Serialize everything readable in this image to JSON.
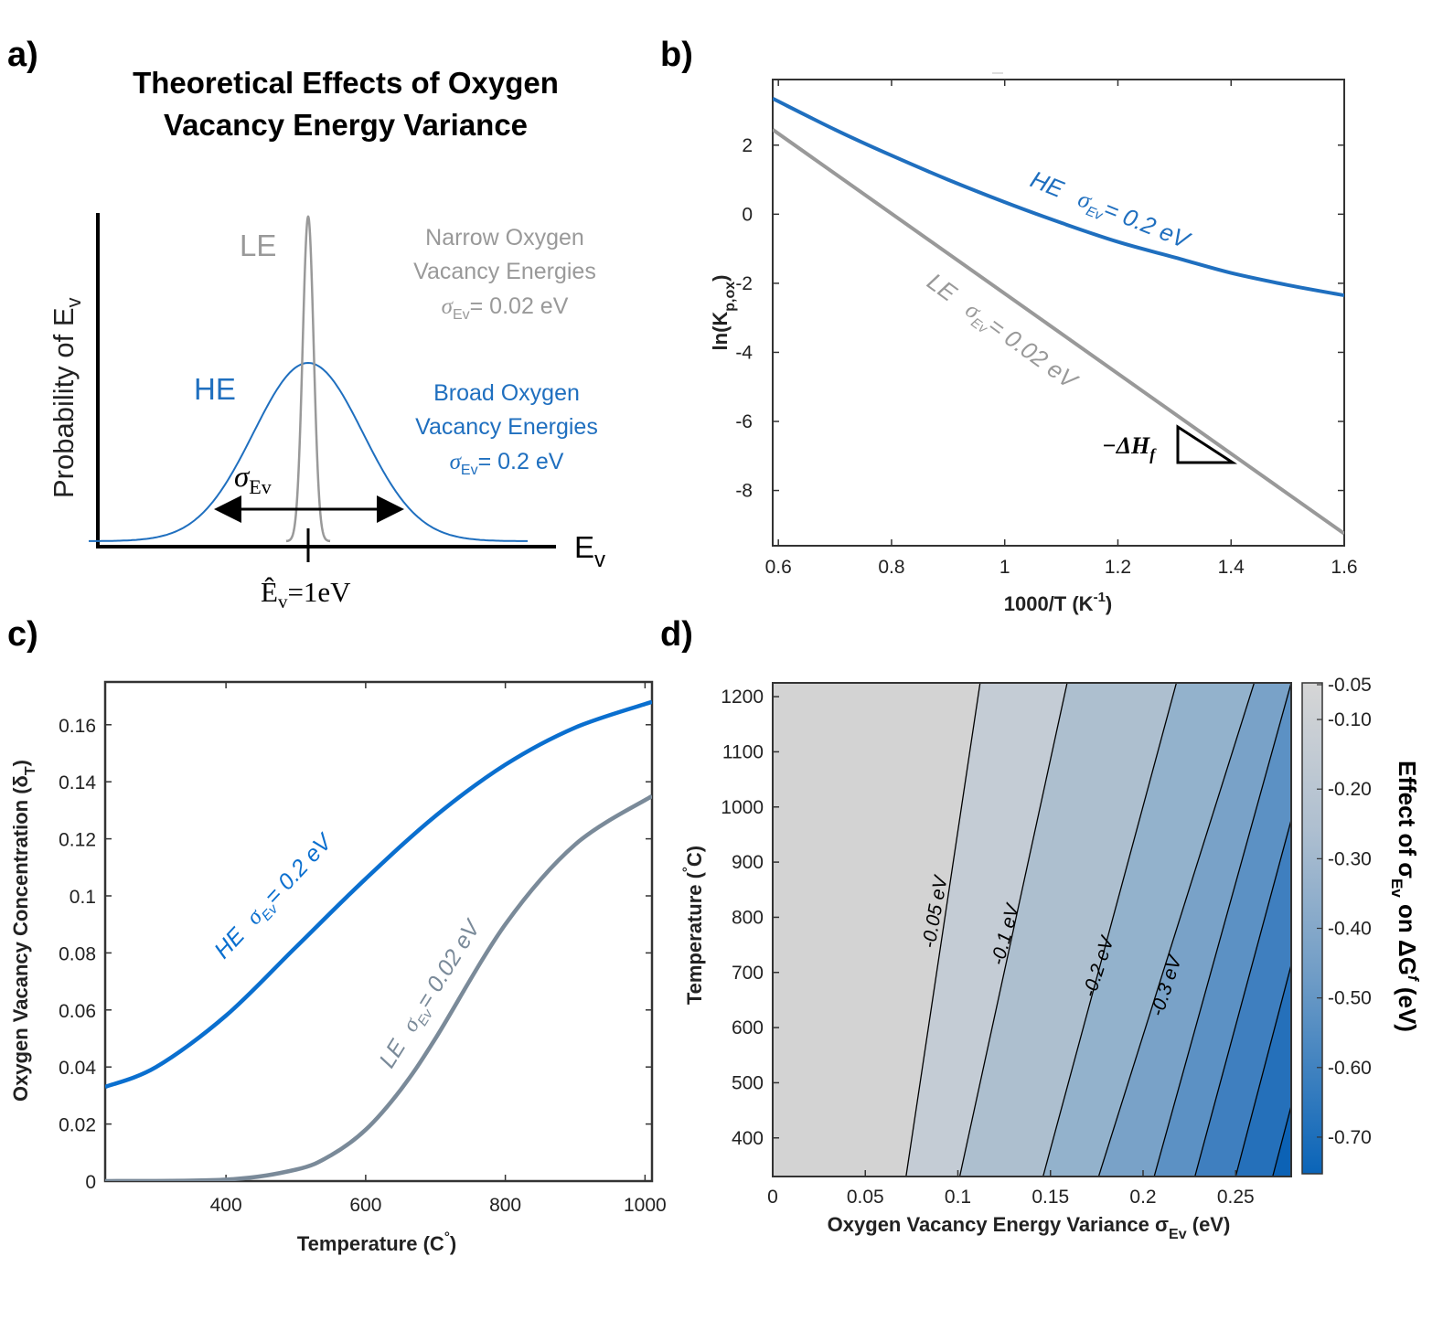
{
  "colors": {
    "he_blue": "#1f6fbf",
    "le_gray": "#999999",
    "le_slate": "#7a8a99",
    "black": "#000000"
  },
  "panel_a": {
    "letter": "a)",
    "title_line1": "Theoretical Effects of Oxygen",
    "title_line2": "Vacancy Energy Variance",
    "ylabel": "Probability of E",
    "ylabel_sub": "v",
    "xlabel": "E",
    "xlabel_sub": "v",
    "le_label": "LE",
    "he_label": "HE",
    "narrow_line1": "Narrow Oxygen",
    "narrow_line2": "Vacancy Energies",
    "narrow_sigma": "= 0.02 eV",
    "broad_line1": "Broad Oxygen",
    "broad_line2": "Vacancy Energies",
    "broad_sigma": "= 0.2 eV",
    "sigma_sym": "σ",
    "sigma_sub": "Ev",
    "mean_label": "Ê",
    "mean_sub": "v",
    "mean_eq": "=1eV",
    "chart_data": {
      "type": "line",
      "series": [
        {
          "name": "LE",
          "mean": 1.0,
          "sigma": 0.02
        },
        {
          "name": "HE",
          "mean": 1.0,
          "sigma": 0.2
        }
      ]
    }
  },
  "panel_b": {
    "letter": "b)",
    "xlabel": "1000/T (K",
    "xlabel_sup": "-1",
    "xlabel_end": ")",
    "ylabel": "ln(K",
    "ylabel_sub": "p,ox",
    "ylabel_end": ")",
    "he_text": "HE",
    "he_sigma": "= 0.2 eV",
    "le_text": "LE",
    "le_sigma": "= 0.02 eV",
    "dh_label": "−ΔH",
    "dh_sub": "f",
    "chart_data": {
      "type": "line",
      "xlim": [
        0.59,
        1.6
      ],
      "ylim": [
        -9.6,
        3.9
      ],
      "xticks": [
        0.6,
        0.8,
        1,
        1.2,
        1.4,
        1.6
      ],
      "yticks": [
        2,
        0,
        -2,
        -4,
        -6,
        -8
      ],
      "series": [
        {
          "name": "HE",
          "x": [
            0.59,
            0.7,
            0.8,
            0.9,
            1.0,
            1.1,
            1.2,
            1.3,
            1.4,
            1.5,
            1.6
          ],
          "y": [
            3.35,
            2.45,
            1.7,
            1.0,
            0.35,
            -0.25,
            -0.8,
            -1.25,
            -1.7,
            -2.05,
            -2.35
          ]
        },
        {
          "name": "LE",
          "x": [
            0.59,
            1.6
          ],
          "y": [
            2.45,
            -9.25
          ]
        }
      ]
    }
  },
  "panel_c": {
    "letter": "c)",
    "xlabel": "Temperature (C",
    "xlabel_sup": "°",
    "xlabel_end": ")",
    "ylabel": "Oxygen Vacancy Concentration (δ",
    "ylabel_sub": "T",
    "ylabel_end": ")",
    "he_text": "HE",
    "he_sigma": "= 0.2 eV",
    "le_text": "LE",
    "le_sigma": "= 0.02 eV",
    "chart_data": {
      "type": "line",
      "xlim": [
        227,
        1010
      ],
      "ylim": [
        0,
        0.175
      ],
      "xticks": [
        400,
        600,
        800,
        1000
      ],
      "yticks": [
        0,
        0.02,
        0.04,
        0.06,
        0.08,
        0.1,
        0.12,
        0.14,
        0.16
      ],
      "series": [
        {
          "name": "HE",
          "x": [
            227,
            300,
            400,
            500,
            600,
            700,
            800,
            900,
            1010
          ],
          "y": [
            0.033,
            0.04,
            0.058,
            0.082,
            0.106,
            0.128,
            0.146,
            0.159,
            0.168
          ]
        },
        {
          "name": "LE",
          "x": [
            227,
            400,
            500,
            550,
            600,
            650,
            700,
            800,
            900,
            1010
          ],
          "y": [
            0.0,
            0.0005,
            0.004,
            0.009,
            0.018,
            0.032,
            0.05,
            0.09,
            0.118,
            0.135
          ]
        }
      ]
    }
  },
  "panel_d": {
    "letter": "d)",
    "xlabel": "Oxygen Vacancy Energy Variance σ",
    "xlabel_sub": "Ev",
    "xlabel_end": " (eV)",
    "ylabel": "Temperature (",
    "ylabel_sup": "°",
    "ylabel_end": "C)",
    "colorbar_title": "Effect  of  σ",
    "colorbar_sub": "Ev",
    "colorbar_end": " on ΔG",
    "colorbar_sup": "f",
    "colorbar_unit": " (eV)",
    "colorbar_ticks": [
      "-0.05",
      "-0.10",
      "-0.20",
      "-0.30",
      "-0.40",
      "-0.50",
      "-0.60",
      "-0.70"
    ],
    "contour_labels": [
      "-0.05 eV",
      "-0.1 eV",
      "-0.2 eV",
      "-0.3 eV"
    ],
    "chart_data": {
      "type": "heatmap",
      "xlim": [
        0,
        0.28
      ],
      "ylim": [
        330,
        1225
      ],
      "xticks": [
        0,
        0.05,
        0.1,
        0.15,
        0.2,
        0.25
      ],
      "yticks": [
        400,
        500,
        600,
        700,
        800,
        900,
        1000,
        1100,
        1200
      ],
      "clim": [
        -0.75,
        -0.05
      ],
      "contours": [
        {
          "level": -0.05,
          "x_bottom": 0.072,
          "x_top": 0.112
        },
        {
          "level": -0.1,
          "x_bottom": 0.101,
          "x_top": 0.159
        },
        {
          "level": -0.2,
          "x_bottom": 0.146,
          "x_top": 0.218
        },
        {
          "level": -0.3,
          "x_bottom": 0.176,
          "x_top": 0.26
        },
        {
          "level": -0.4,
          "x_bottom": 0.206,
          "x_top": 0.28
        },
        {
          "level": -0.5,
          "x_bottom": 0.228,
          "x_top": 0.3
        },
        {
          "level": -0.6,
          "x_bottom": 0.25,
          "x_top": 0.32
        },
        {
          "level": -0.7,
          "x_bottom": 0.27,
          "x_top": 0.34
        }
      ]
    }
  }
}
